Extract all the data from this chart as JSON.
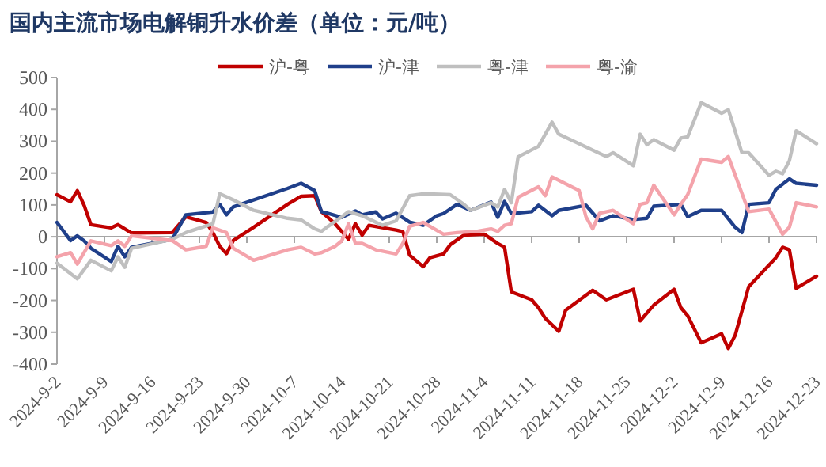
{
  "chart_data": {
    "type": "line",
    "title": "国内主流市场电解铜升水价差（单位：元/吨）",
    "legend": "top",
    "ylim": [
      -400,
      500
    ],
    "yticks": [
      -400,
      -300,
      -200,
      -100,
      0,
      100,
      200,
      300,
      400,
      500
    ],
    "xlim": [
      "2024-09-02",
      "2024-12-23"
    ],
    "xticks": [
      {
        "value": "2024-09-02",
        "label": "2024-9-2"
      },
      {
        "value": "2024-09-09",
        "label": "2024-9-9"
      },
      {
        "value": "2024-09-16",
        "label": "2024-9-16"
      },
      {
        "value": "2024-09-23",
        "label": "2024-9-23"
      },
      {
        "value": "2024-09-30",
        "label": "2024-9-30"
      },
      {
        "value": "2024-10-07",
        "label": "2024-10-7"
      },
      {
        "value": "2024-10-14",
        "label": "2024-10-14"
      },
      {
        "value": "2024-10-21",
        "label": "2024-10-21"
      },
      {
        "value": "2024-10-28",
        "label": "2024-10-28"
      },
      {
        "value": "2024-11-04",
        "label": "2024-11-4"
      },
      {
        "value": "2024-11-11",
        "label": "2024-11-11"
      },
      {
        "value": "2024-11-18",
        "label": "2024-11-18"
      },
      {
        "value": "2024-11-25",
        "label": "2024-11-25"
      },
      {
        "value": "2024-12-02",
        "label": "2024-12-2"
      },
      {
        "value": "2024-12-09",
        "label": "2024-12-9"
      },
      {
        "value": "2024-12-16",
        "label": "2024-12-16"
      },
      {
        "value": "2024-12-23",
        "label": "2024-12-23"
      }
    ],
    "series": [
      {
        "name": "沪-粤",
        "color": "#c00000",
        "x": [
          "2024-09-02",
          "2024-09-04",
          "2024-09-05",
          "2024-09-06",
          "2024-09-07",
          "2024-09-10",
          "2024-09-11",
          "2024-09-13",
          "2024-09-19",
          "2024-09-21",
          "2024-09-24",
          "2024-09-25",
          "2024-09-26",
          "2024-09-27",
          "2024-09-28",
          "2024-10-01",
          "2024-10-06",
          "2024-10-08",
          "2024-10-10",
          "2024-10-11",
          "2024-10-13",
          "2024-10-15",
          "2024-10-16",
          "2024-10-17",
          "2024-10-18",
          "2024-10-22",
          "2024-10-23",
          "2024-10-24",
          "2024-10-26",
          "2024-10-27",
          "2024-10-29",
          "2024-10-30",
          "2024-11-01",
          "2024-11-04",
          "2024-11-06",
          "2024-11-07",
          "2024-11-08",
          "2024-11-11",
          "2024-11-12",
          "2024-11-13",
          "2024-11-15",
          "2024-11-16",
          "2024-11-20",
          "2024-11-22",
          "2024-11-26",
          "2024-11-27",
          "2024-11-29",
          "2024-12-02",
          "2024-12-03",
          "2024-12-04",
          "2024-12-06",
          "2024-12-09",
          "2024-12-10",
          "2024-12-11",
          "2024-12-13",
          "2024-12-17",
          "2024-12-18",
          "2024-12-19",
          "2024-12-20",
          "2024-12-23"
        ],
        "values": [
          132,
          110,
          145,
          99,
          38,
          28,
          38,
          12,
          13,
          63,
          45,
          13,
          -30,
          -53,
          -12,
          30,
          102,
          127,
          129,
          79,
          41,
          -8,
          41,
          5,
          36,
          21,
          16,
          -58,
          -94,
          -66,
          -54,
          -25,
          5,
          8,
          -21,
          -33,
          -173,
          -198,
          -223,
          -256,
          -297,
          -231,
          -168,
          -198,
          -165,
          -264,
          -215,
          -165,
          -223,
          -248,
          -333,
          -305,
          -351,
          -310,
          -157,
          -66,
          -33,
          -41,
          -162,
          -124
        ]
      },
      {
        "name": "沪-津",
        "color": "#1f3f8a",
        "x": [
          "2024-09-02",
          "2024-09-04",
          "2024-09-05",
          "2024-09-06",
          "2024-09-07",
          "2024-09-10",
          "2024-09-11",
          "2024-09-12",
          "2024-09-13",
          "2024-09-19",
          "2024-09-21",
          "2024-09-25",
          "2024-09-26",
          "2024-09-27",
          "2024-09-28",
          "2024-10-06",
          "2024-10-08",
          "2024-10-10",
          "2024-10-11",
          "2024-10-12",
          "2024-10-14",
          "2024-10-16",
          "2024-10-17",
          "2024-10-19",
          "2024-10-20",
          "2024-10-22",
          "2024-10-24",
          "2024-10-26",
          "2024-10-28",
          "2024-10-29",
          "2024-10-31",
          "2024-11-02",
          "2024-11-05",
          "2024-11-06",
          "2024-11-07",
          "2024-11-08",
          "2024-11-11",
          "2024-11-12",
          "2024-11-14",
          "2024-11-15",
          "2024-11-19",
          "2024-11-21",
          "2024-11-23",
          "2024-11-26",
          "2024-11-28",
          "2024-11-29",
          "2024-12-03",
          "2024-12-04",
          "2024-12-06",
          "2024-12-09",
          "2024-12-11",
          "2024-12-12",
          "2024-12-13",
          "2024-12-16",
          "2024-12-17",
          "2024-12-19",
          "2024-12-20",
          "2024-12-23"
        ],
        "values": [
          45,
          -12,
          3,
          -13,
          -36,
          -78,
          -30,
          -63,
          -33,
          -8,
          69,
          78,
          102,
          69,
          94,
          152,
          168,
          145,
          79,
          73,
          61,
          81,
          69,
          78,
          56,
          74,
          46,
          36,
          66,
          73,
          102,
          83,
          109,
          61,
          111,
          73,
          79,
          99,
          66,
          83,
          99,
          50,
          66,
          54,
          58,
          96,
          102,
          63,
          83,
          83,
          30,
          13,
          102,
          107,
          149,
          182,
          168,
          162
        ]
      },
      {
        "name": "粤-津",
        "color": "#bfbfbf",
        "x": [
          "2024-09-02",
          "2024-09-05",
          "2024-09-07",
          "2024-09-10",
          "2024-09-11",
          "2024-09-12",
          "2024-09-13",
          "2024-09-19",
          "2024-09-21",
          "2024-09-25",
          "2024-09-26",
          "2024-09-28",
          "2024-10-01",
          "2024-10-06",
          "2024-10-08",
          "2024-10-10",
          "2024-10-11",
          "2024-10-12",
          "2024-10-14",
          "2024-10-15",
          "2024-10-17",
          "2024-10-20",
          "2024-10-22",
          "2024-10-24",
          "2024-10-26",
          "2024-10-30",
          "2024-11-01",
          "2024-11-02",
          "2024-11-05",
          "2024-11-06",
          "2024-11-07",
          "2024-11-08",
          "2024-11-09",
          "2024-11-12",
          "2024-11-14",
          "2024-11-15",
          "2024-11-22",
          "2024-11-23",
          "2024-11-26",
          "2024-11-27",
          "2024-11-28",
          "2024-11-29",
          "2024-12-02",
          "2024-12-03",
          "2024-12-04",
          "2024-12-06",
          "2024-12-09",
          "2024-12-10",
          "2024-12-12",
          "2024-12-13",
          "2024-12-16",
          "2024-12-17",
          "2024-12-18",
          "2024-12-19",
          "2024-12-20",
          "2024-12-23"
        ],
        "values": [
          -83,
          -132,
          -74,
          -107,
          -63,
          -96,
          -36,
          -8,
          13,
          41,
          135,
          116,
          83,
          58,
          53,
          25,
          17,
          33,
          63,
          79,
          66,
          36,
          50,
          129,
          135,
          132,
          102,
          83,
          107,
          94,
          149,
          107,
          251,
          284,
          360,
          322,
          252,
          264,
          223,
          322,
          289,
          305,
          272,
          310,
          314,
          421,
          388,
          399,
          264,
          264,
          193,
          206,
          198,
          239,
          333,
          292
        ]
      },
      {
        "name": "粤-渝",
        "color": "#f4a3ab",
        "x": [
          "2024-09-02",
          "2024-09-04",
          "2024-09-05",
          "2024-09-07",
          "2024-09-10",
          "2024-09-11",
          "2024-09-12",
          "2024-09-13",
          "2024-09-19",
          "2024-09-21",
          "2024-09-24",
          "2024-09-25",
          "2024-09-27",
          "2024-09-28",
          "2024-10-01",
          "2024-10-06",
          "2024-10-08",
          "2024-10-10",
          "2024-10-11",
          "2024-10-13",
          "2024-10-14",
          "2024-10-15",
          "2024-10-16",
          "2024-10-17",
          "2024-10-19",
          "2024-10-22",
          "2024-10-23",
          "2024-10-24",
          "2024-10-26",
          "2024-10-29",
          "2024-10-31",
          "2024-11-03",
          "2024-11-05",
          "2024-11-06",
          "2024-11-07",
          "2024-11-08",
          "2024-11-09",
          "2024-11-12",
          "2024-11-13",
          "2024-11-14",
          "2024-11-18",
          "2024-11-19",
          "2024-11-20",
          "2024-11-21",
          "2024-11-23",
          "2024-11-26",
          "2024-11-27",
          "2024-11-28",
          "2024-11-29",
          "2024-12-02",
          "2024-12-03",
          "2024-12-04",
          "2024-12-06",
          "2024-12-09",
          "2024-12-10",
          "2024-12-13",
          "2024-12-16",
          "2024-12-18",
          "2024-12-19",
          "2024-12-20",
          "2024-12-23"
        ],
        "values": [
          -63,
          -50,
          -86,
          -13,
          -28,
          -13,
          -30,
          3,
          -12,
          -41,
          -30,
          28,
          13,
          -36,
          -74,
          -41,
          -33,
          -54,
          -50,
          -30,
          -13,
          41,
          -20,
          -21,
          -41,
          -54,
          -21,
          33,
          45,
          8,
          13,
          17,
          25,
          17,
          36,
          41,
          124,
          157,
          129,
          188,
          145,
          63,
          25,
          74,
          83,
          41,
          102,
          107,
          162,
          69,
          102,
          132,
          244,
          234,
          252,
          79,
          87,
          8,
          30,
          107,
          94
        ]
      }
    ]
  }
}
